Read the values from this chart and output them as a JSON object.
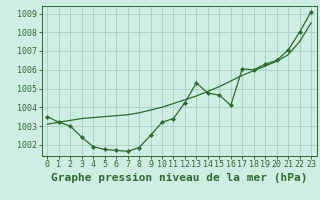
{
  "title": "Graphe pression niveau de la mer (hPa)",
  "background_color": "#ceeee4",
  "grid_color": "#aad4c8",
  "line_color": "#2d6a2d",
  "marker_color": "#2d6a2d",
  "xlim": [
    -0.5,
    23.5
  ],
  "ylim": [
    1001.4,
    1009.4
  ],
  "yticks": [
    1002,
    1003,
    1004,
    1005,
    1006,
    1007,
    1008,
    1009
  ],
  "xticks": [
    0,
    1,
    2,
    3,
    4,
    5,
    6,
    7,
    8,
    9,
    10,
    11,
    12,
    13,
    14,
    15,
    16,
    17,
    18,
    19,
    20,
    21,
    22,
    23
  ],
  "series1_x": [
    0,
    1,
    2,
    3,
    4,
    5,
    6,
    7,
    8,
    9,
    10,
    11,
    12,
    13,
    14,
    15,
    16,
    17,
    18,
    19,
    20,
    21,
    22,
    23
  ],
  "series1_y": [
    1003.5,
    1003.2,
    1003.0,
    1002.4,
    1001.9,
    1001.75,
    1001.7,
    1001.65,
    1001.85,
    1002.5,
    1003.2,
    1003.4,
    1004.25,
    1005.3,
    1004.75,
    1004.65,
    1004.1,
    1006.05,
    1006.0,
    1006.3,
    1006.5,
    1007.05,
    1008.0,
    1009.1
  ],
  "series2_x": [
    0,
    1,
    2,
    3,
    4,
    5,
    6,
    7,
    8,
    9,
    10,
    11,
    12,
    13,
    14,
    15,
    16,
    17,
    18,
    19,
    20,
    21,
    22,
    23
  ],
  "series2_y": [
    1003.1,
    1003.2,
    1003.3,
    1003.4,
    1003.45,
    1003.5,
    1003.55,
    1003.6,
    1003.7,
    1003.85,
    1004.0,
    1004.2,
    1004.4,
    1004.6,
    1004.85,
    1005.1,
    1005.4,
    1005.7,
    1005.95,
    1006.2,
    1006.45,
    1006.8,
    1007.5,
    1008.5
  ],
  "title_fontsize": 8,
  "tick_fontsize": 6
}
